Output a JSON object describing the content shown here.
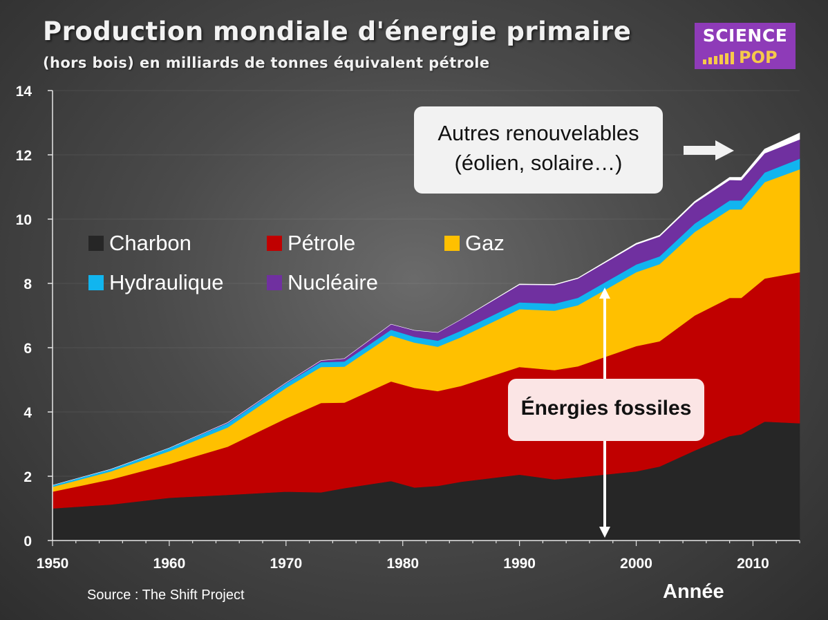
{
  "title": "Production mondiale d'énergie primaire",
  "subtitle": "(hors bois) en milliards de tonnes équivalent pétrole",
  "logo": {
    "line1": "SCIENCE",
    "line2": "POP"
  },
  "source": "Source : The Shift Project",
  "annotations": {
    "renewables_line1": "Autres renouvelables",
    "renewables_line2": "(éolien, solaire…)",
    "fossil": "Énergies fossiles"
  },
  "chart_data": {
    "type": "area",
    "stacked": true,
    "xlabel": "Année",
    "ylabel": "",
    "xlim": [
      1950,
      2014
    ],
    "ylim": [
      0,
      14
    ],
    "xticks": [
      1950,
      1960,
      1970,
      1980,
      1990,
      2000,
      2010
    ],
    "yticks": [
      0,
      2,
      4,
      6,
      8,
      10,
      12,
      14
    ],
    "x": [
      1950,
      1955,
      1960,
      1965,
      1970,
      1973,
      1975,
      1979,
      1981,
      1983,
      1985,
      1990,
      1993,
      1995,
      2000,
      2002,
      2005,
      2008,
      2009,
      2011,
      2014
    ],
    "series": [
      {
        "name": "Charbon",
        "color": "#262626",
        "values": [
          1.0,
          1.12,
          1.33,
          1.42,
          1.52,
          1.5,
          1.63,
          1.85,
          1.65,
          1.7,
          1.83,
          2.05,
          1.9,
          1.97,
          2.15,
          2.3,
          2.8,
          3.25,
          3.3,
          3.7,
          3.65
        ]
      },
      {
        "name": "Pétrole",
        "color": "#c00000",
        "values": [
          0.52,
          0.78,
          1.05,
          1.5,
          2.28,
          2.78,
          2.66,
          3.1,
          3.1,
          2.95,
          2.98,
          3.35,
          3.4,
          3.45,
          3.9,
          3.9,
          4.2,
          4.3,
          4.25,
          4.45,
          4.7
        ]
      },
      {
        "name": "Gaz",
        "color": "#ffc000",
        "values": [
          0.15,
          0.25,
          0.4,
          0.6,
          0.95,
          1.12,
          1.12,
          1.43,
          1.41,
          1.38,
          1.52,
          1.8,
          1.85,
          1.9,
          2.3,
          2.4,
          2.6,
          2.75,
          2.75,
          3.0,
          3.2
        ]
      },
      {
        "name": "Hydraulique",
        "color": "#11b5ef",
        "values": [
          0.05,
          0.07,
          0.1,
          0.13,
          0.14,
          0.15,
          0.16,
          0.18,
          0.18,
          0.19,
          0.2,
          0.21,
          0.22,
          0.23,
          0.24,
          0.24,
          0.26,
          0.28,
          0.28,
          0.3,
          0.33
        ]
      },
      {
        "name": "Nucléaire",
        "color": "#7030a0",
        "values": [
          0.0,
          0.0,
          0.0,
          0.02,
          0.02,
          0.05,
          0.09,
          0.17,
          0.2,
          0.25,
          0.35,
          0.55,
          0.58,
          0.6,
          0.62,
          0.62,
          0.64,
          0.64,
          0.63,
          0.6,
          0.6
        ]
      },
      {
        "name": "Autres renouvelables",
        "color": "#ffffff",
        "values": [
          0.0,
          0.0,
          0.0,
          0.0,
          0.0,
          0.0,
          0.0,
          0.0,
          0.0,
          0.0,
          0.0,
          0.02,
          0.02,
          0.02,
          0.04,
          0.04,
          0.05,
          0.08,
          0.09,
          0.13,
          0.2
        ]
      }
    ],
    "legend": [
      "Charbon",
      "Pétrole",
      "Gaz",
      "Hydraulique",
      "Nucléaire"
    ]
  }
}
